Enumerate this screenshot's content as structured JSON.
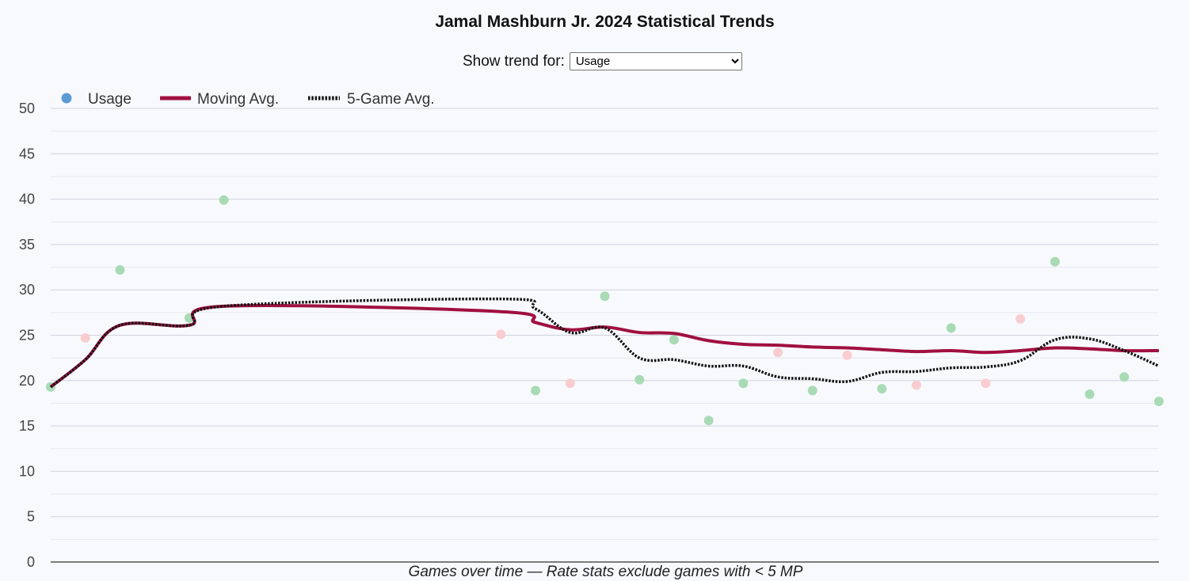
{
  "header": {
    "title": "Jamal Mashburn Jr. 2024 Statistical Trends",
    "trend_label": "Show trend for:",
    "trend_selected": "Usage"
  },
  "legend": {
    "points_label": "Usage",
    "moving_label": "Moving Avg.",
    "five_game_label": "5-Game Avg."
  },
  "colors": {
    "above_avg_point": "#a8dbb5",
    "below_avg_point": "#f9cdd0",
    "legend_point": "#5b9bd5",
    "moving_avg": "#a01040",
    "five_game_avg": "#111111",
    "grid": "#cfd3dc",
    "axis": "#333333"
  },
  "chart_data": {
    "type": "scatter",
    "xlabel": "Games over time — Rate stats exclude games with < 5 MP",
    "ylabel": "",
    "ylim": [
      0,
      50
    ],
    "yticks": [
      0,
      5,
      10,
      15,
      20,
      25,
      30,
      35,
      40,
      45,
      50
    ],
    "xlim": [
      1,
      33
    ],
    "grid": true,
    "legend_position": "top-left",
    "series": [
      {
        "name": "Usage",
        "kind": "points",
        "x": [
          1,
          2,
          3,
          5,
          6,
          14,
          15,
          16,
          17,
          18,
          19,
          20,
          21,
          22,
          23,
          24,
          25,
          26,
          27,
          28,
          29,
          30,
          31,
          32,
          33
        ],
        "values": [
          19.3,
          24.7,
          32.2,
          26.9,
          39.9,
          25.1,
          18.9,
          19.7,
          29.3,
          20.1,
          24.5,
          15.6,
          19.7,
          23.1,
          18.9,
          22.8,
          19.1,
          19.5,
          25.8,
          19.7,
          26.8,
          33.1,
          18.5,
          20.4,
          17.7
        ],
        "above_average": [
          true,
          false,
          true,
          true,
          true,
          false,
          true,
          false,
          true,
          true,
          true,
          true,
          true,
          false,
          true,
          false,
          true,
          false,
          true,
          false,
          false,
          true,
          true,
          true,
          true
        ]
      },
      {
        "name": "Moving Avg.",
        "kind": "line",
        "x": [
          1,
          2,
          3,
          5,
          6,
          14,
          15,
          16,
          17,
          18,
          19,
          20,
          21,
          22,
          23,
          24,
          25,
          26,
          27,
          28,
          29,
          30,
          31,
          32,
          33
        ],
        "values": [
          19.3,
          22.3,
          26.1,
          26.1,
          28.2,
          27.6,
          26.4,
          25.6,
          25.9,
          25.3,
          25.2,
          24.4,
          24.0,
          23.9,
          23.7,
          23.6,
          23.4,
          23.2,
          23.3,
          23.1,
          23.3,
          23.6,
          23.5,
          23.3,
          23.3
        ]
      },
      {
        "name": "5-Game Avg.",
        "kind": "line",
        "x": [
          1,
          2,
          3,
          5,
          6,
          14,
          15,
          16,
          17,
          18,
          19,
          20,
          21,
          22,
          23,
          24,
          25,
          26,
          27,
          28,
          29,
          30,
          31,
          32,
          33
        ],
        "values": [
          19.3,
          22.3,
          26.1,
          26.1,
          28.2,
          29.0,
          27.9,
          25.3,
          25.8,
          22.5,
          22.3,
          21.6,
          21.6,
          20.4,
          20.2,
          19.9,
          20.9,
          21.0,
          21.4,
          21.5,
          22.2,
          24.5,
          24.6,
          23.3,
          21.6
        ]
      }
    ]
  }
}
